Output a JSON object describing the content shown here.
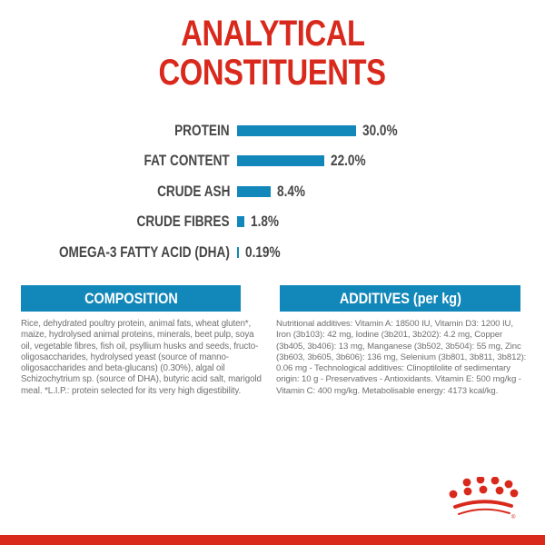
{
  "title": {
    "line1": "ANALYTICAL",
    "line2": "CONSTITUENTS"
  },
  "colors": {
    "brand_red": "#d9291c",
    "accent_blue": "#1287b9",
    "label_dark": "#464646",
    "body_gray": "#6f6f6f"
  },
  "chart_data": {
    "type": "bar",
    "orientation": "horizontal",
    "title": "ANALYTICAL CONSTITUENTS",
    "categories": [
      "PROTEIN",
      "FAT CONTENT",
      "CRUDE ASH",
      "CRUDE FIBRES",
      "OMEGA-3 FATTY ACID (DHA)"
    ],
    "values": [
      30.0,
      22.0,
      8.4,
      1.8,
      0.19
    ],
    "value_labels": [
      "30.0%",
      "22.0%",
      "8.4%",
      "1.8%",
      "0.19%"
    ],
    "unit": "%",
    "xlim": [
      0,
      30
    ],
    "bar_color": "#1287b9",
    "grid": false,
    "legend": false
  },
  "sections": {
    "composition": {
      "header": "COMPOSITION",
      "body": "Rice, dehydrated poultry protein, animal fats, wheat gluten*, maize, hydrolysed animal proteins, minerals, beet pulp, soya oil, vegetable fibres, fish oil, psyllium husks and seeds, fructo-oligosaccharides, hydrolysed yeast (source of manno-oligosaccharides and beta-glucans) (0.30%), algal oil Schizochytrium sp. (source of DHA), butyric acid salt, marigold meal. *L.I.P.: protein selected for its very high digestibility."
    },
    "additives": {
      "header": "ADDITIVES (per kg)",
      "body": "Nutritional additives: Vitamin A: 18500 IU, Vitamin D3: 1200 IU, Iron (3b103): 42 mg, Iodine (3b201, 3b202): 4.2 mg, Copper (3b405, 3b406): 13 mg, Manganese (3b502, 3b504): 55 mg, Zinc (3b603, 3b605, 3b606): 136 mg, Selenium (3b801, 3b811, 3b812): 0.06 mg - Technological additives: Clinoptilolite of sedimentary origin: 10 g - Preservatives - Antioxidants. Vitamin E: 500 mg/kg - Vitamin C: 400 mg/kg. Metabolisable energy: 4173 kcal/kg."
    }
  },
  "footer": {
    "logo": "royal-canin-crown",
    "registered_mark": "®"
  }
}
